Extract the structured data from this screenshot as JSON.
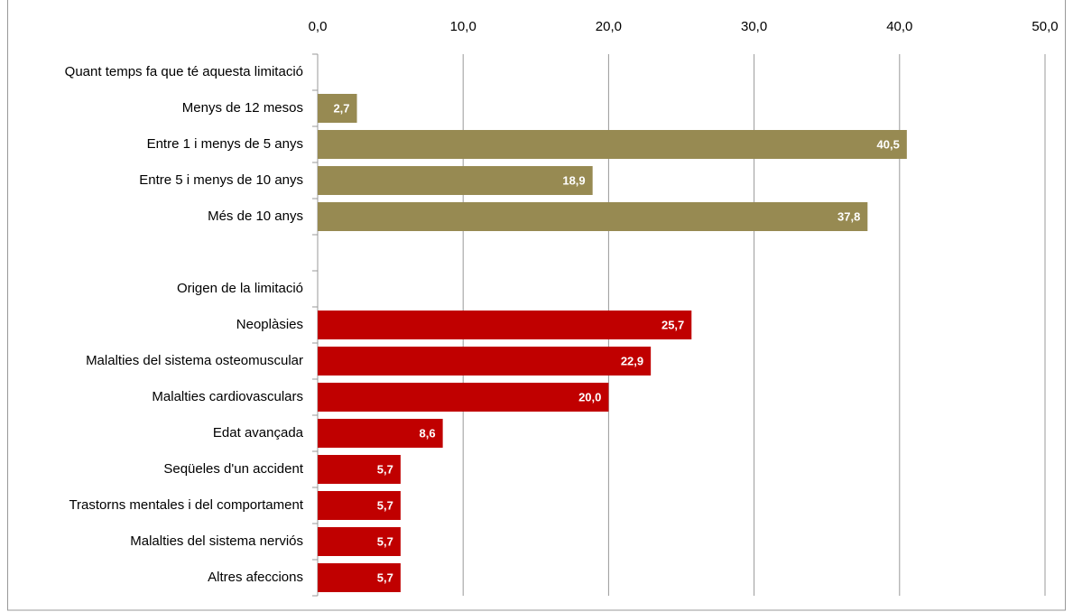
{
  "chart_data": {
    "type": "bar",
    "orientation": "horizontal",
    "categories": [
      "Quant temps fa que té aquesta limitació",
      "Menys de 12 mesos",
      "Entre 1 i menys de 5 anys",
      "Entre 5 i menys de 10 anys",
      "Més de 10 anys",
      null,
      "Origen de la limitació",
      "Neoplàsies",
      "Malalties del sistema osteomuscular",
      "Malalties cardiovasculars",
      "Edat avançada",
      "Seqüeles d'un accident",
      "Trastorns mentales i del comportament",
      "Malalties del sistema nerviós",
      "Altres afeccions"
    ],
    "values": [
      null,
      2.7,
      40.5,
      18.9,
      37.8,
      null,
      null,
      25.7,
      22.9,
      20.0,
      8.6,
      5.7,
      5.7,
      5.7,
      5.7
    ],
    "value_labels": [
      null,
      "2,7",
      "40,5",
      "18,9",
      "37,8",
      null,
      null,
      "25,7",
      "22,9",
      "20,0",
      "8,6",
      "5,7",
      "5,7",
      "5,7",
      "5,7"
    ],
    "colors": [
      null,
      "#978a52",
      "#978a52",
      "#978a52",
      "#978a52",
      null,
      null,
      "#c00000",
      "#c00000",
      "#c00000",
      "#c00000",
      "#c00000",
      "#c00000",
      "#c00000",
      "#c00000"
    ],
    "xlim": [
      0,
      50
    ],
    "xticks": [
      {
        "value": 0,
        "label": "0,0"
      },
      {
        "value": 10,
        "label": "10,0"
      },
      {
        "value": 20,
        "label": "20,0"
      },
      {
        "value": 30,
        "label": "30,0"
      },
      {
        "value": 40,
        "label": "40,0"
      },
      {
        "value": 50,
        "label": "50,0"
      }
    ],
    "grid": true
  }
}
